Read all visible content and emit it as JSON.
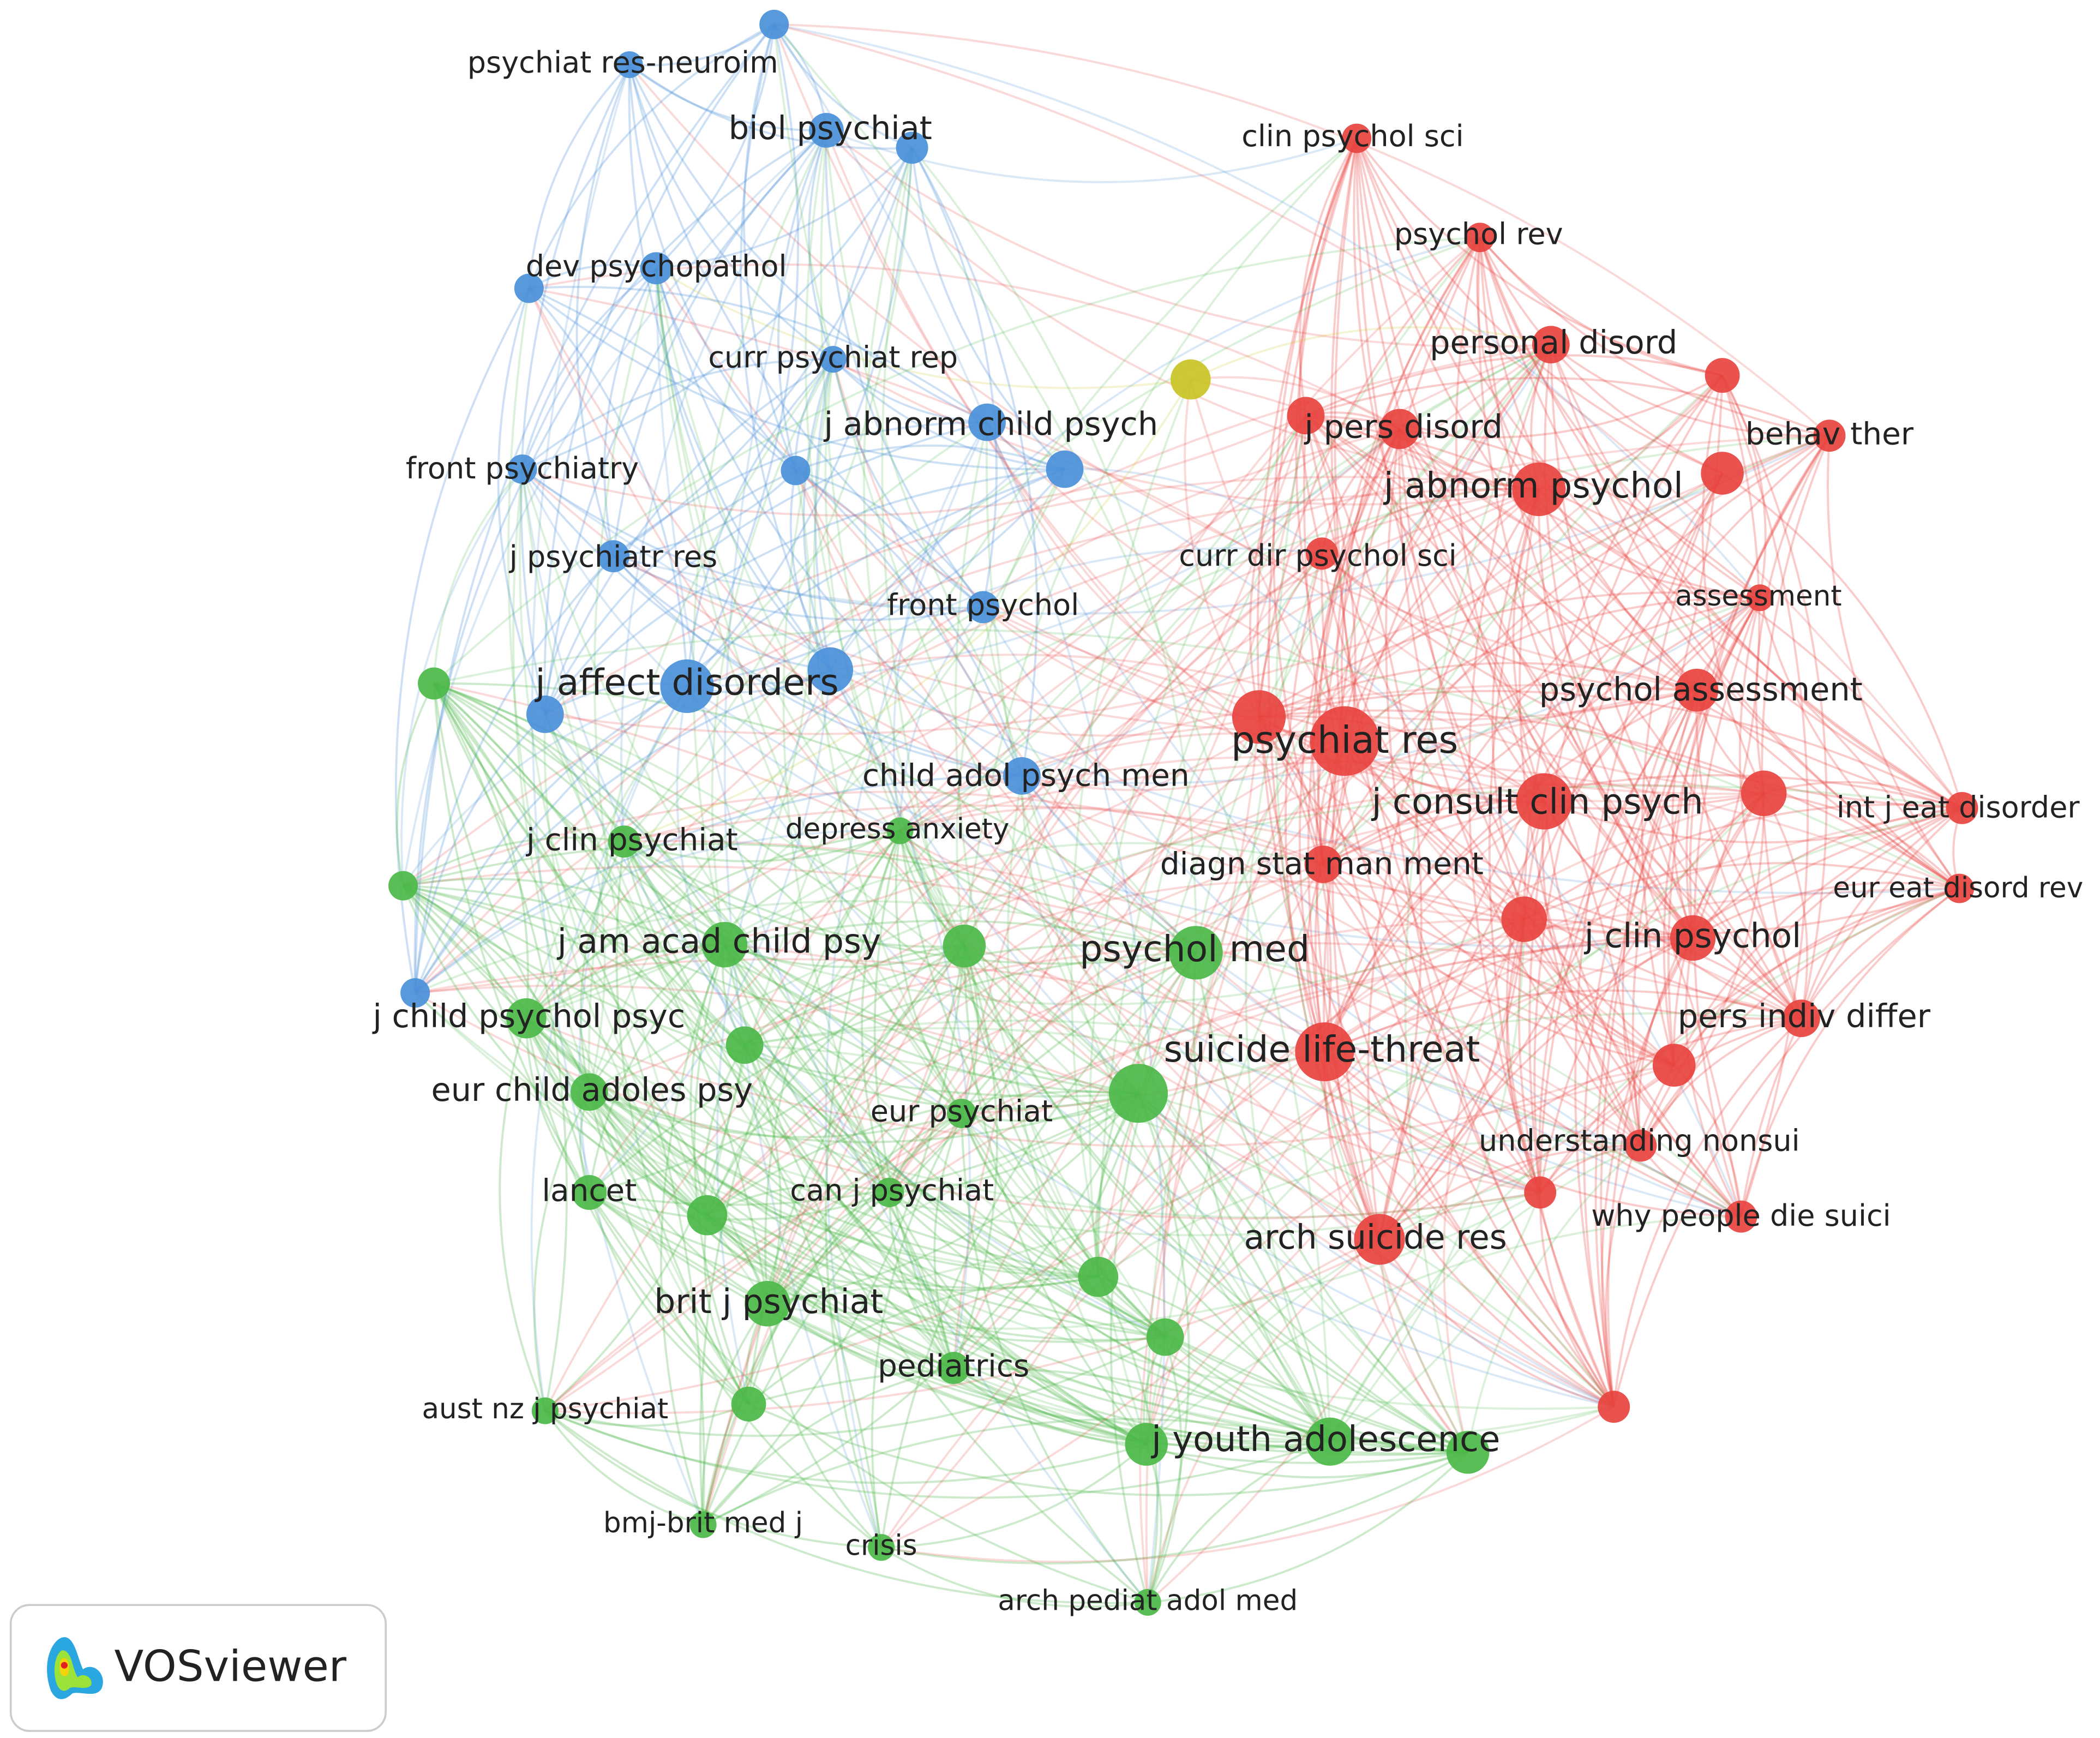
{
  "nodes": [
    {
      "label": "psychiat res-neuroim"
    },
    {
      "label": "biol psychiat"
    },
    {
      "label": "dev psychopathol"
    },
    {
      "label": "curr psychiat rep"
    },
    {
      "label": "j abnorm child psych"
    },
    {
      "label": "front psychiatry"
    },
    {
      "label": "j psychiatr res"
    },
    {
      "label": "front psychol"
    },
    {
      "label": "j affect disorders"
    },
    {
      "label": "child adol psych men"
    },
    {
      "label": "clin psychol sci"
    },
    {
      "label": "psychol rev"
    },
    {
      "label": "personal disord"
    },
    {
      "label": "behav ther"
    },
    {
      "label": "j pers disord"
    },
    {
      "label": "j abnorm psychol"
    },
    {
      "label": "curr dir psychol sci"
    },
    {
      "label": "assessment"
    },
    {
      "label": "psychol assessment"
    },
    {
      "label": "psychiat res"
    },
    {
      "label": "j consult clin psych"
    },
    {
      "label": "int j eat disorder"
    },
    {
      "label": "diagn stat man ment"
    },
    {
      "label": "eur eat disord rev"
    },
    {
      "label": "j clin psychol"
    },
    {
      "label": "pers indiv differ"
    },
    {
      "label": "suicide life-threat"
    },
    {
      "label": "understanding nonsui"
    },
    {
      "label": "why people die suici"
    },
    {
      "label": "arch suicide res"
    },
    {
      "label": "j clin psychiat"
    },
    {
      "label": "depress anxiety"
    },
    {
      "label": "j am acad child psy"
    },
    {
      "label": "psychol med"
    },
    {
      "label": "j child psychol psyc"
    },
    {
      "label": "eur child adoles psy"
    },
    {
      "label": "eur psychiat"
    },
    {
      "label": "lancet"
    },
    {
      "label": "can j psychiat"
    },
    {
      "label": "brit j psychiat"
    },
    {
      "label": "pediatrics"
    },
    {
      "label": "aust nz j psychiat"
    },
    {
      "label": "j youth adolescence"
    },
    {
      "label": "bmj-brit med j"
    },
    {
      "label": "crisis"
    },
    {
      "label": "arch pediat adol med"
    }
  ],
  "logo": "VOSviewer"
}
